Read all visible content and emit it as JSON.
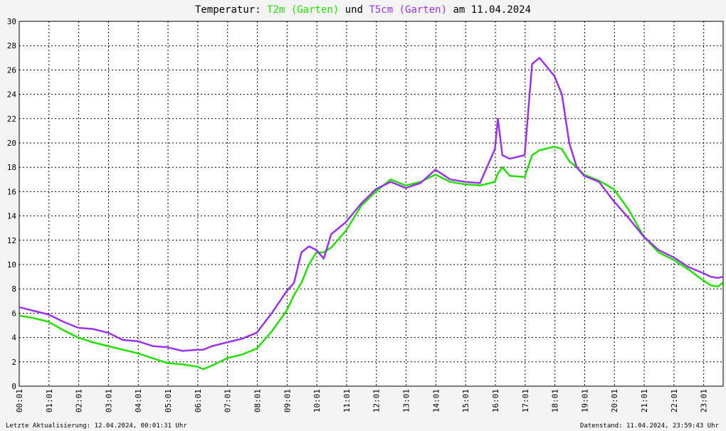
{
  "chart_data": {
    "type": "line",
    "title_prefix": "Temperatur:",
    "title_conjunction": "und",
    "title_suffix": "am 11.04.2024",
    "footer_left": "Letzte Aktualisierung: 12.04.2024, 00:01:31 Uhr",
    "footer_right": "Datenstand: 11.04.2024, 23:59:43 Uhr",
    "x": [
      0.0167,
      0.5,
      1,
      1.5,
      2,
      2.5,
      3,
      3.5,
      4,
      4.5,
      5,
      5.5,
      6,
      6.2,
      6.5,
      7,
      7.5,
      8,
      8.5,
      9,
      9.25,
      9.5,
      9.75,
      10,
      10.25,
      10.5,
      11,
      11.5,
      12,
      12.5,
      13,
      13.5,
      14,
      14.5,
      15,
      15.5,
      16,
      16.1,
      16.25,
      16.5,
      17,
      17.25,
      17.5,
      18,
      18.25,
      18.5,
      18.75,
      19,
      19.5,
      20,
      20.5,
      21,
      21.5,
      22,
      22.5,
      23,
      23.25,
      23.5,
      23.65
    ],
    "series": [
      {
        "name": "T2m (Garten)",
        "color": "#22e000",
        "values": [
          5.8,
          5.6,
          5.3,
          4.6,
          4.0,
          3.6,
          3.3,
          3.0,
          2.7,
          2.3,
          1.9,
          1.8,
          1.6,
          1.4,
          1.7,
          2.3,
          2.6,
          3.1,
          4.5,
          6.2,
          7.5,
          8.5,
          10.0,
          11.0,
          11.0,
          11.4,
          12.8,
          14.8,
          16.0,
          17.0,
          16.5,
          16.8,
          17.4,
          16.8,
          16.6,
          16.5,
          16.8,
          17.5,
          18.0,
          17.3,
          17.2,
          19.0,
          19.4,
          19.7,
          19.5,
          18.5,
          18.0,
          17.4,
          16.9,
          16.2,
          14.5,
          12.3,
          11.0,
          10.4,
          9.6,
          8.7,
          8.3,
          8.2,
          8.5
        ]
      },
      {
        "name": "T5cm (Garten)",
        "color": "#9933ee",
        "values": [
          6.5,
          6.2,
          5.9,
          5.3,
          4.8,
          4.7,
          4.4,
          3.8,
          3.7,
          3.3,
          3.2,
          2.9,
          3.0,
          3.0,
          3.3,
          3.6,
          3.9,
          4.4,
          6.0,
          7.8,
          8.5,
          11.0,
          11.5,
          11.2,
          10.5,
          12.5,
          13.5,
          15.0,
          16.2,
          16.8,
          16.3,
          16.7,
          17.8,
          17.0,
          16.8,
          16.7,
          19.5,
          22.0,
          19.0,
          18.7,
          19.0,
          26.5,
          27.0,
          25.5,
          24.0,
          20.0,
          18.0,
          17.3,
          16.8,
          15.2,
          13.8,
          12.3,
          11.2,
          10.6,
          9.8,
          9.3,
          9.0,
          8.9,
          9.0
        ]
      }
    ],
    "xlim": [
      0.0167,
      23.67
    ],
    "xticks": [
      {
        "value": 0.0167,
        "label": "00:01"
      },
      {
        "value": 1.0167,
        "label": "01:01"
      },
      {
        "value": 2.0167,
        "label": "02:01"
      },
      {
        "value": 3.0167,
        "label": "03:01"
      },
      {
        "value": 4.0167,
        "label": "04:01"
      },
      {
        "value": 5.0167,
        "label": "05:01"
      },
      {
        "value": 6.0167,
        "label": "06:01"
      },
      {
        "value": 7.0167,
        "label": "07:01"
      },
      {
        "value": 8.0167,
        "label": "08:01"
      },
      {
        "value": 9.0167,
        "label": "09:01"
      },
      {
        "value": 10.0167,
        "label": "10:01"
      },
      {
        "value": 11.0167,
        "label": "11:01"
      },
      {
        "value": 12.0167,
        "label": "12:01"
      },
      {
        "value": 13.0167,
        "label": "13:01"
      },
      {
        "value": 14.0167,
        "label": "14:01"
      },
      {
        "value": 15.0167,
        "label": "15:01"
      },
      {
        "value": 16.0167,
        "label": "16:01"
      },
      {
        "value": 17.0167,
        "label": "17:01"
      },
      {
        "value": 18.0167,
        "label": "18:01"
      },
      {
        "value": 19.0167,
        "label": "19:01"
      },
      {
        "value": 20.0167,
        "label": "20:01"
      },
      {
        "value": 21.0167,
        "label": "21:01"
      },
      {
        "value": 22.0167,
        "label": "22:01"
      },
      {
        "value": 23.0167,
        "label": "23:01"
      }
    ],
    "ylim": [
      0,
      30
    ],
    "yticks": [
      0,
      2,
      4,
      6,
      8,
      10,
      12,
      14,
      16,
      18,
      20,
      22,
      24,
      26,
      28,
      30
    ],
    "grid": true
  }
}
